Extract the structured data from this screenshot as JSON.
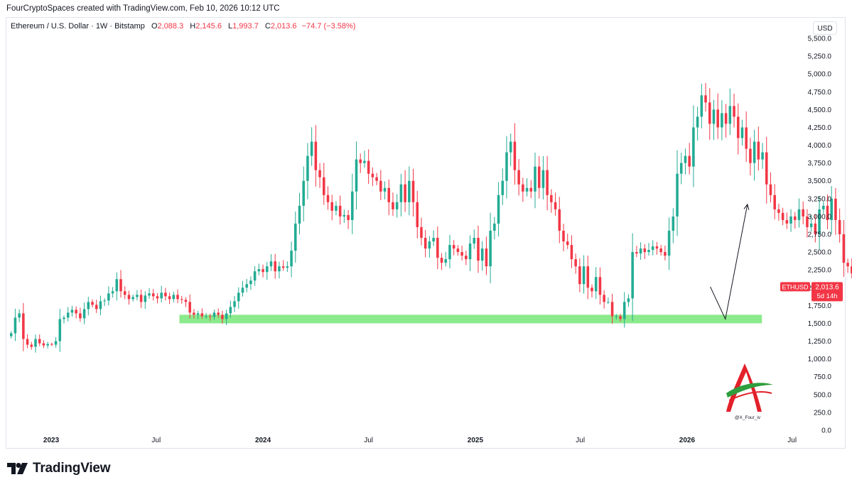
{
  "header": {
    "credit": "FourCryptoSpaces created with TradingView.com, Feb 10, 2026 10:12 UTC"
  },
  "legend": {
    "symbol": "Ethereum / U.S. Dollar · 1W · Bitstamp",
    "o_label": "O",
    "o_value": "2,088.3",
    "h_label": "H",
    "h_value": "2,145.6",
    "l_label": "L",
    "l_value": "1,993.7",
    "c_label": "C",
    "c_value": "2,013.6",
    "change": "−74.7 (−3.58%)"
  },
  "currency_button": "USD",
  "price_label": {
    "ticker": "ETHUSD",
    "price": "2,013.6",
    "countdown": "5d 14h"
  },
  "watermark_handle": "@X_Four_iv",
  "footer": {
    "brand": "TradingView"
  },
  "colors": {
    "up": "#22ab94",
    "down": "#f23645",
    "support_zone": "#7ee87e",
    "label_bg": "#f23645",
    "arrow": "#131722"
  },
  "chart_data": {
    "type": "candlestick",
    "title": "Ethereum / U.S. Dollar · 1W · Bitstamp",
    "ylim": [
      0,
      5500
    ],
    "y_ticks": [
      "0.0",
      "250.0",
      "500.0",
      "750.0",
      "1,000.0",
      "1,250.0",
      "1,500.0",
      "1,750.0",
      "2,000.0",
      "2,250.0",
      "2,500.0",
      "2,750.0",
      "3,000.0",
      "3,250.0",
      "3,500.0",
      "3,750.0",
      "4,000.0",
      "4,250.0",
      "4,500.0",
      "4,750.0",
      "5,000.0",
      "5,250.0",
      "5,500.0"
    ],
    "x_ticks": [
      "2023",
      "Jul",
      "2024",
      "Jul",
      "2025",
      "Jul",
      "2026",
      "Jul"
    ],
    "x_tick_dates": [
      "2023-01-01",
      "2023-07-01",
      "2024-01-01",
      "2024-07-01",
      "2025-01-01",
      "2025-07-01",
      "2026-01-01",
      "2026-07-01"
    ],
    "x_range": [
      "2022-10-17",
      "2026-08-01"
    ],
    "first_candle_date": "2022-10-24",
    "candle_interval": "1W",
    "closes": [
      1360,
      1580,
      1640,
      1280,
      1200,
      1170,
      1280,
      1220,
      1190,
      1210,
      1200,
      1250,
      1560,
      1580,
      1650,
      1690,
      1640,
      1570,
      1700,
      1800,
      1760,
      1700,
      1810,
      1820,
      1920,
      1950,
      2120,
      1950,
      1900,
      1840,
      1870,
      1900,
      1800,
      1890,
      1920,
      1880,
      1850,
      1930,
      1880,
      1840,
      1900,
      1840,
      1830,
      1800,
      1650,
      1620,
      1640,
      1600,
      1600,
      1590,
      1650,
      1620,
      1560,
      1640,
      1730,
      1810,
      1930,
      2000,
      2050,
      2100,
      2230,
      2260,
      2220,
      2300,
      2370,
      2230,
      2300,
      2280,
      2300,
      2520,
      2900,
      3150,
      3500,
      3850,
      4050,
      3650,
      3550,
      3300,
      3200,
      3080,
      3150,
      3000,
      3020,
      2950,
      3350,
      3800,
      3750,
      3780,
      3600,
      3550,
      3500,
      3350,
      3400,
      3200,
      3100,
      3200,
      3450,
      3200,
      3500,
      3200,
      2850,
      2700,
      2550,
      2650,
      2700,
      2420,
      2350,
      2400,
      2600,
      2550,
      2500,
      2450,
      2400,
      2620,
      2700,
      2380,
      2550,
      2300,
      2800,
      2900,
      3300,
      3500,
      3900,
      4050,
      3650,
      3450,
      3350,
      3400,
      3350,
      3700,
      3400,
      3650,
      3300,
      3200,
      3100,
      2800,
      2650,
      2600,
      2400,
      2300,
      2050,
      2300,
      2000,
      1950,
      2150,
      1900,
      1800,
      1800,
      1600,
      1600,
      1560,
      1800,
      1850,
      2500,
      2480,
      2550,
      2500,
      2530,
      2580,
      2550,
      2500,
      2450,
      2800,
      3000,
      3600,
      3750,
      3850,
      3700,
      4250,
      4400,
      4700,
      4600,
      4300,
      4500,
      4250,
      4450,
      4300,
      4550,
      4400,
      4100,
      4250,
      3950,
      3750,
      4050,
      3800,
      3900,
      3450,
      3300,
      3100,
      3050,
      2950,
      2900,
      3000,
      2950,
      3100,
      3000,
      2850,
      2900,
      2750,
      3100,
      3150,
      2950,
      3250,
      2950,
      2750,
      2350,
      2300,
      2200,
      2140,
      2088,
      2013
    ],
    "last": {
      "open": 2088.3,
      "high": 2145.6,
      "low": 1993.7,
      "close": 2013.6,
      "change": -74.7,
      "change_pct": -3.58
    },
    "support_zone": {
      "from": 1500,
      "to": 1620,
      "start_date": "2023-08-10",
      "end_date": "2026-05-10"
    },
    "projection_arrow": [
      {
        "date": "2026-02-10",
        "price": 2013.6
      },
      {
        "date": "2026-03-08",
        "price": 1560
      },
      {
        "date": "2026-04-15",
        "price": 3170
      }
    ]
  }
}
